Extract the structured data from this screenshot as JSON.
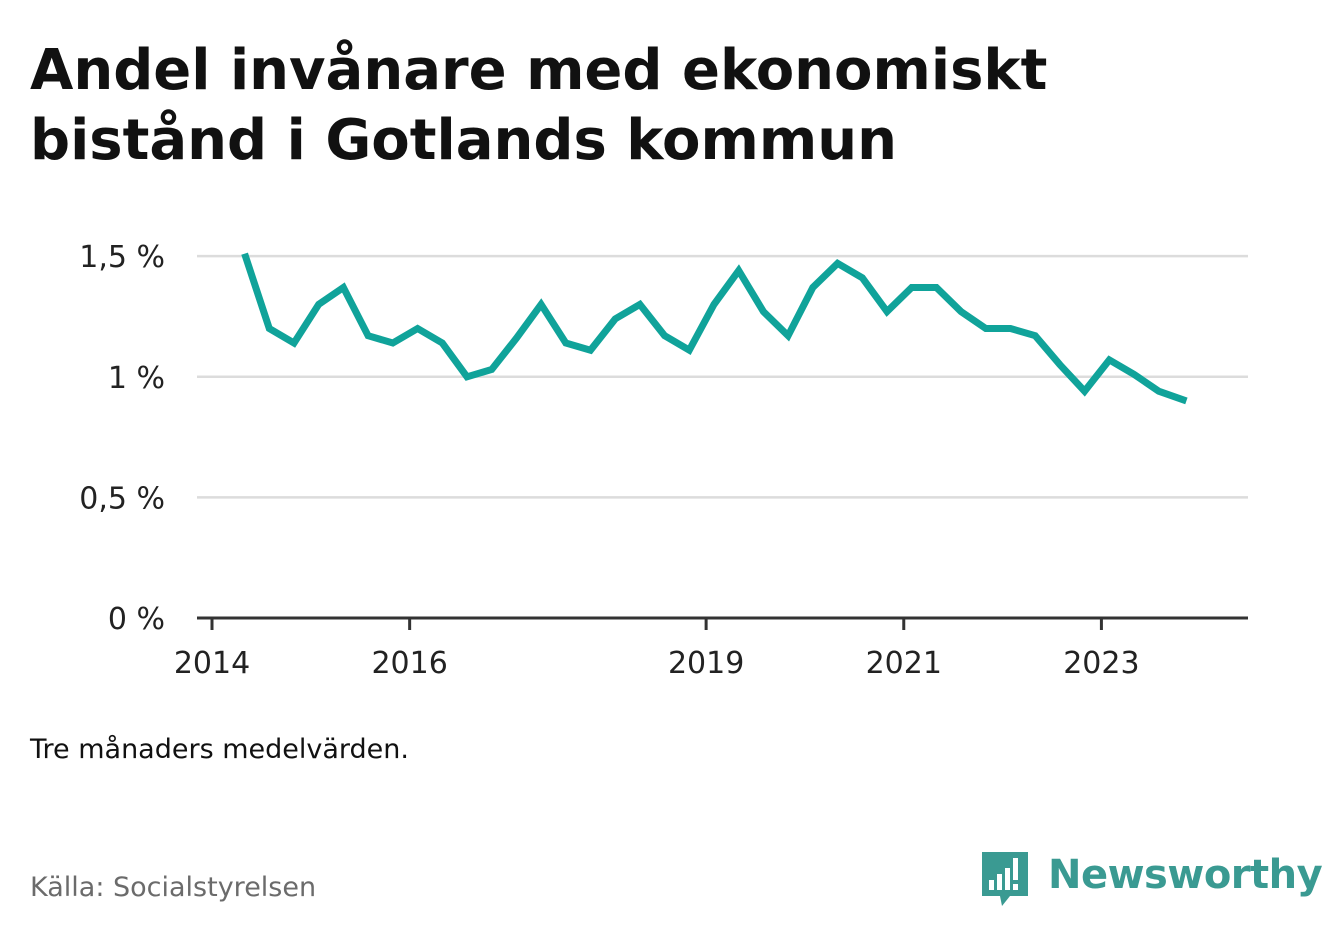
{
  "header": {
    "title_line1": "Andel invånare med ekonomiskt",
    "title_line2": "bistånd i Gotlands kommun"
  },
  "footer": {
    "note": "Tre månaders medelvärden.",
    "source": "Källa: Socialstyrelsen",
    "brand": "Newsworthy",
    "brand_icon": "newsworthy-logo-icon"
  },
  "colors": {
    "line": "#10a39a",
    "grid": "#dcdcdc",
    "axis": "#333333",
    "brand": "#3a9a92"
  },
  "chart_data": {
    "type": "line",
    "title": "Andel invånare med ekonomiskt bistånd i Gotlands kommun",
    "xlabel": "",
    "ylabel": "",
    "ylim": [
      0,
      1.6
    ],
    "xlim": [
      2014,
      2024.2
    ],
    "grid": true,
    "y_ticks": [
      {
        "value": 0,
        "label": "0 %"
      },
      {
        "value": 0.5,
        "label": "0,5 %"
      },
      {
        "value": 1,
        "label": "1 %"
      },
      {
        "value": 1.5,
        "label": "1,5 %"
      }
    ],
    "x_ticks": [
      {
        "value": 2014,
        "label": "2014"
      },
      {
        "value": 2016,
        "label": "2016"
      },
      {
        "value": 2019,
        "label": "2019"
      },
      {
        "value": 2021,
        "label": "2021"
      },
      {
        "value": 2023,
        "label": "2023"
      }
    ],
    "series": [
      {
        "name": "",
        "x": [
          2014.33,
          2014.58,
          2014.83,
          2015.08,
          2015.33,
          2015.58,
          2015.83,
          2016.08,
          2016.33,
          2016.58,
          2016.83,
          2017.08,
          2017.33,
          2017.58,
          2017.83,
          2018.08,
          2018.33,
          2018.58,
          2018.83,
          2019.08,
          2019.33,
          2019.58,
          2019.83,
          2020.08,
          2020.33,
          2020.58,
          2020.83,
          2021.08,
          2021.33,
          2021.58,
          2021.83,
          2022.08,
          2022.33,
          2022.58,
          2022.83,
          2023.08,
          2023.33,
          2023.58,
          2023.86
        ],
        "values": [
          1.51,
          1.2,
          1.14,
          1.3,
          1.37,
          1.17,
          1.14,
          1.2,
          1.14,
          1.0,
          1.03,
          1.16,
          1.3,
          1.14,
          1.11,
          1.24,
          1.3,
          1.17,
          1.11,
          1.3,
          1.44,
          1.27,
          1.17,
          1.37,
          1.47,
          1.41,
          1.27,
          1.37,
          1.37,
          1.27,
          1.2,
          1.2,
          1.17,
          1.05,
          0.94,
          1.07,
          1.01,
          0.94,
          0.9
        ]
      }
    ]
  }
}
